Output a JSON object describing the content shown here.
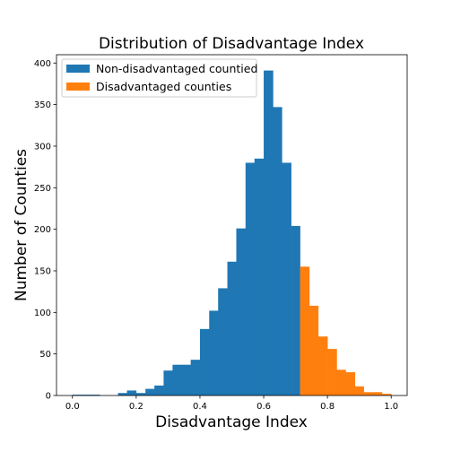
{
  "chart_data": {
    "type": "bar",
    "title": "Distribution of Disadvantage Index",
    "xlabel": "Disadvantage Index",
    "ylabel": "Number of Counties",
    "xlim": [
      -0.05,
      1.05
    ],
    "ylim": [
      0,
      410
    ],
    "xticks": [
      0.0,
      0.2,
      0.4,
      0.6,
      0.8,
      1.0
    ],
    "xtick_labels": [
      "0.0",
      "0.2",
      "0.4",
      "0.6",
      "0.8",
      "1.0"
    ],
    "yticks": [
      0,
      50,
      100,
      150,
      200,
      250,
      300,
      350,
      400
    ],
    "ytick_labels": [
      "0",
      "50",
      "100",
      "150",
      "200",
      "250",
      "300",
      "350",
      "400"
    ],
    "grid": false,
    "legend_position": "top-left",
    "series": [
      {
        "name": "Non-disadvantaged countied",
        "color": "#1f77b4",
        "bins": [
          [
            0.0,
            0.0286,
            1
          ],
          [
            0.0286,
            0.0571,
            1
          ],
          [
            0.0571,
            0.0857,
            1
          ],
          [
            0.143,
            0.171,
            3
          ],
          [
            0.171,
            0.2,
            6
          ],
          [
            0.2,
            0.229,
            3
          ],
          [
            0.229,
            0.257,
            8
          ],
          [
            0.257,
            0.286,
            12
          ],
          [
            0.286,
            0.314,
            30
          ],
          [
            0.314,
            0.343,
            37
          ],
          [
            0.343,
            0.371,
            37
          ],
          [
            0.371,
            0.4,
            43
          ],
          [
            0.4,
            0.429,
            80
          ],
          [
            0.429,
            0.457,
            102
          ],
          [
            0.457,
            0.486,
            129
          ],
          [
            0.486,
            0.514,
            161
          ],
          [
            0.514,
            0.543,
            201
          ],
          [
            0.543,
            0.571,
            280
          ],
          [
            0.571,
            0.6,
            285
          ],
          [
            0.6,
            0.629,
            391
          ],
          [
            0.629,
            0.657,
            347
          ],
          [
            0.657,
            0.686,
            280
          ],
          [
            0.686,
            0.714,
            204
          ]
        ]
      },
      {
        "name": "Disadvantaged counties",
        "color": "#ff7f0e",
        "bins": [
          [
            0.714,
            0.743,
            155
          ],
          [
            0.743,
            0.771,
            108
          ],
          [
            0.771,
            0.8,
            71
          ],
          [
            0.8,
            0.829,
            56
          ],
          [
            0.829,
            0.857,
            31
          ],
          [
            0.857,
            0.886,
            28
          ],
          [
            0.886,
            0.914,
            11
          ],
          [
            0.914,
            0.943,
            4
          ],
          [
            0.943,
            0.971,
            4
          ],
          [
            0.971,
            1.0,
            2
          ]
        ]
      }
    ]
  }
}
